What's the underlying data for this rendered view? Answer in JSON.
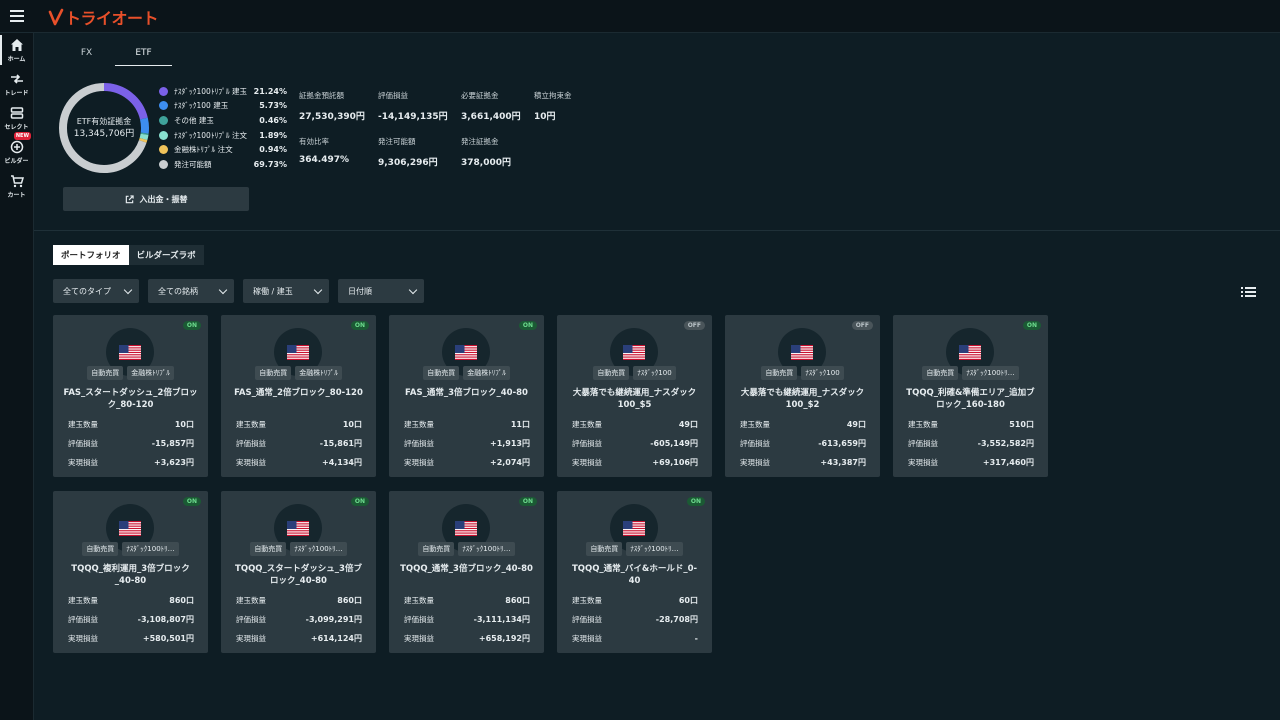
{
  "app": {
    "logo_text": "トライオート"
  },
  "sidebar": {
    "items": [
      {
        "label": "ホーム",
        "icon": "home-icon"
      },
      {
        "label": "トレード",
        "icon": "trade-icon"
      },
      {
        "label": "セレクト",
        "icon": "select-icon"
      },
      {
        "label": "ビルダー",
        "icon": "builder-icon",
        "badge": "NEW"
      },
      {
        "label": "カート",
        "icon": "cart-icon"
      }
    ]
  },
  "tabs": [
    {
      "label": "FX"
    },
    {
      "label": "ETF"
    }
  ],
  "summary": {
    "donut_title": "ETF有効証拠金",
    "donut_value": "13,345,706円",
    "legend": [
      {
        "name": "ﾅｽﾀﾞｯｸ100ﾄﾘﾌﾟﾙ 建玉",
        "pct": "21.24%",
        "value": 21.24,
        "color": "#7b61e8"
      },
      {
        "name": "ﾅｽﾀﾞｯｸ100 建玉",
        "pct": "5.73%",
        "value": 5.73,
        "color": "#3d8ef0"
      },
      {
        "name": "その他 建玉",
        "pct": "0.46%",
        "value": 0.46,
        "color": "#3fa39b"
      },
      {
        "name": "ﾅｽﾀﾞｯｸ100ﾄﾘﾌﾟﾙ 注文",
        "pct": "1.89%",
        "value": 1.89,
        "color": "#88e0cf"
      },
      {
        "name": "金融株ﾄﾘﾌﾟﾙ 注文",
        "pct": "0.94%",
        "value": 0.94,
        "color": "#f0c35a"
      },
      {
        "name": "発注可能額",
        "pct": "69.73%",
        "value": 69.73,
        "color": "#c9cdd0"
      }
    ],
    "stats": [
      {
        "label": "証拠金預託額",
        "value": "27,530,390円"
      },
      {
        "label": "評価損益",
        "value": "-14,149,135円"
      },
      {
        "label": "必要証拠金",
        "value": "3,661,400円"
      },
      {
        "label": "積立拘束金",
        "value": "10円"
      },
      {
        "label": "有効比率",
        "value": "364.497%"
      },
      {
        "label": "発注可能額",
        "value": "9,306,296円"
      },
      {
        "label": "発注証拠金",
        "value": "378,000円"
      }
    ],
    "deposit_button": "入出金・振替"
  },
  "portfolio_tabs": [
    {
      "label": "ポートフォリオ"
    },
    {
      "label": "ビルダーズラボ"
    }
  ],
  "filters": [
    {
      "label": "全てのタイプ"
    },
    {
      "label": "全ての銘柄"
    },
    {
      "label": "稼働 / 建玉"
    },
    {
      "label": "日付順"
    }
  ],
  "row_labels": {
    "qty": "建玉数量",
    "unrealized": "評価損益",
    "realized": "実現損益"
  },
  "cards": [
    {
      "status": "ON",
      "tag1": "自動売買",
      "tag2": "金融株ﾄﾘﾌﾟﾙ",
      "name": "FAS_スタートダッシュ_2倍ブロック_80-120",
      "qty": "10口",
      "unrealized": "-15,857円",
      "realized": "+3,623円"
    },
    {
      "status": "ON",
      "tag1": "自動売買",
      "tag2": "金融株ﾄﾘﾌﾟﾙ",
      "name": "FAS_通常_2倍ブロック_80-120",
      "qty": "10口",
      "unrealized": "-15,861円",
      "realized": "+4,134円"
    },
    {
      "status": "ON",
      "tag1": "自動売買",
      "tag2": "金融株ﾄﾘﾌﾟﾙ",
      "name": "FAS_通常_3倍ブロック_40-80",
      "qty": "11口",
      "unrealized": "+1,913円",
      "realized": "+2,074円"
    },
    {
      "status": "OFF",
      "tag1": "自動売買",
      "tag2": "ﾅｽﾀﾞｯｸ100",
      "name": "大暴落でも継続運用_ナスダック100_$5",
      "qty": "49口",
      "unrealized": "-605,149円",
      "realized": "+69,106円"
    },
    {
      "status": "OFF",
      "tag1": "自動売買",
      "tag2": "ﾅｽﾀﾞｯｸ100",
      "name": "大暴落でも継続運用_ナスダック100_$2",
      "qty": "49口",
      "unrealized": "-613,659円",
      "realized": "+43,387円"
    },
    {
      "status": "ON",
      "tag1": "自動売買",
      "tag2": "ﾅｽﾀﾞｯｸ100ﾄﾘ…",
      "name": "TQQQ_利確&準備エリア_追加ブロック_160-180",
      "qty": "510口",
      "unrealized": "-3,552,582円",
      "realized": "+317,460円"
    },
    {
      "status": "ON",
      "tag1": "自動売買",
      "tag2": "ﾅｽﾀﾞｯｸ100ﾄﾘ…",
      "name": "TQQQ_複利運用_3倍ブロック_40-80",
      "qty": "860口",
      "unrealized": "-3,108,807円",
      "realized": "+580,501円"
    },
    {
      "status": "ON",
      "tag1": "自動売買",
      "tag2": "ﾅｽﾀﾞｯｸ100ﾄﾘ…",
      "name": "TQQQ_スタートダッシュ_3倍ブロック_40-80",
      "qty": "860口",
      "unrealized": "-3,099,291円",
      "realized": "+614,124円"
    },
    {
      "status": "ON",
      "tag1": "自動売買",
      "tag2": "ﾅｽﾀﾞｯｸ100ﾄﾘ…",
      "name": "TQQQ_通常_3倍ブロック_40-80",
      "qty": "860口",
      "unrealized": "-3,111,134円",
      "realized": "+658,192円"
    },
    {
      "status": "ON",
      "tag1": "自動売買",
      "tag2": "ﾅｽﾀﾞｯｸ100ﾄﾘ…",
      "name": "TQQQ_通常_バイ&ホールド_0-40",
      "qty": "60口",
      "unrealized": "-28,708円",
      "realized": "-"
    }
  ]
}
